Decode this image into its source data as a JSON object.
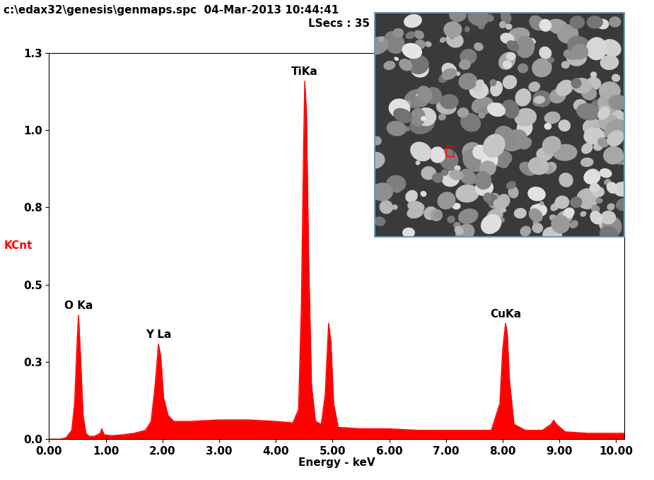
{
  "chart_data": {
    "type": "area",
    "title": "c:\\edax32\\genesis\\genmaps.spc  04-Mar-2013 10:44:41",
    "subtitle": "LSecs : 35",
    "x_label": "Energy - keV",
    "y_label": "KCnt",
    "color": "#ff0000",
    "x": [
      0.0,
      0.2,
      0.3,
      0.4,
      0.45,
      0.5,
      0.52,
      0.55,
      0.6,
      0.65,
      0.7,
      0.8,
      0.9,
      0.93,
      0.97,
      1.1,
      1.3,
      1.5,
      1.7,
      1.8,
      1.87,
      1.93,
      1.97,
      2.02,
      2.1,
      2.2,
      2.5,
      3.0,
      3.5,
      4.0,
      4.3,
      4.4,
      4.45,
      4.49,
      4.51,
      4.54,
      4.58,
      4.63,
      4.7,
      4.8,
      4.87,
      4.93,
      4.97,
      5.02,
      5.1,
      5.5,
      6.0,
      6.5,
      7.0,
      7.5,
      7.8,
      7.95,
      8.0,
      8.05,
      8.08,
      8.12,
      8.2,
      8.4,
      8.7,
      8.85,
      8.9,
      8.95,
      9.1,
      9.5,
      10.0,
      10.15
    ],
    "values": [
      0.0,
      0.0,
      0.005,
      0.03,
      0.12,
      0.35,
      0.417,
      0.3,
      0.08,
      0.02,
      0.01,
      0.01,
      0.02,
      0.035,
      0.015,
      0.012,
      0.015,
      0.02,
      0.03,
      0.06,
      0.18,
      0.32,
      0.28,
      0.14,
      0.08,
      0.06,
      0.06,
      0.065,
      0.065,
      0.06,
      0.055,
      0.1,
      0.45,
      1.0,
      1.205,
      1.1,
      0.6,
      0.18,
      0.06,
      0.05,
      0.15,
      0.39,
      0.33,
      0.12,
      0.04,
      0.035,
      0.035,
      0.03,
      0.03,
      0.03,
      0.03,
      0.12,
      0.3,
      0.39,
      0.36,
      0.2,
      0.05,
      0.03,
      0.03,
      0.05,
      0.064,
      0.05,
      0.025,
      0.02,
      0.02,
      0.02
    ],
    "annotations": [
      {
        "text": "O Ka",
        "x": 0.52
      },
      {
        "text": "Y La",
        "x": 1.93
      },
      {
        "text": "TiKa",
        "x": 4.51
      },
      {
        "text": "CuKa",
        "x": 8.05
      }
    ],
    "xlim": [
      0,
      10.15
    ],
    "xticks": [
      {
        "value": 0,
        "label": "0.00"
      },
      {
        "value": 1,
        "label": "1.00"
      },
      {
        "value": 2,
        "label": "2.00"
      },
      {
        "value": 3,
        "label": "3.00"
      },
      {
        "value": 4,
        "label": "4.00"
      },
      {
        "value": 5,
        "label": "5.00"
      },
      {
        "value": 6,
        "label": "6.00"
      },
      {
        "value": 7,
        "label": "7.00"
      },
      {
        "value": 8,
        "label": "8.00"
      },
      {
        "value": 9,
        "label": "9.00"
      },
      {
        "value": 10,
        "label": "10.00"
      }
    ],
    "ylim": [
      0,
      1.3
    ],
    "yticks": [
      {
        "value": 0,
        "label": "0.0"
      },
      {
        "value": 0.26,
        "label": "0.3"
      },
      {
        "value": 0.52,
        "label": "0.5"
      },
      {
        "value": 0.78,
        "label": "0.8"
      },
      {
        "value": 1.04,
        "label": "1.0"
      },
      {
        "value": 1.3,
        "label": "1.3"
      }
    ],
    "grid": false
  }
}
